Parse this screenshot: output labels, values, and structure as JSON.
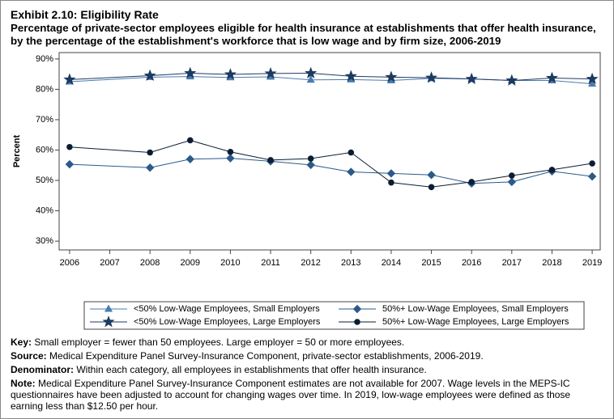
{
  "chart_data": {
    "type": "line",
    "title": "Exhibit 2.10: Eligibility Rate",
    "subtitle": "Percentage of private-sector employees eligible for health insurance at establishments that offer health insurance, by the percentage of the establishment's workforce that is low wage and by firm size, 2006-2019",
    "y_label": "Percent",
    "x": [
      2006,
      2008,
      2009,
      2010,
      2011,
      2012,
      2013,
      2014,
      2015,
      2016,
      2017,
      2018,
      2019
    ],
    "xlim": [
      2005.74,
      2019.2
    ],
    "xticks": [
      2006,
      2007,
      2008,
      2009,
      2010,
      2011,
      2012,
      2013,
      2014,
      2015,
      2016,
      2017,
      2018,
      2019
    ],
    "ylim": [
      27.1,
      92.1
    ],
    "yticks": [
      {
        "value": 30,
        "label": "30%"
      },
      {
        "value": 40,
        "label": "40%"
      },
      {
        "value": 50,
        "label": "50%"
      },
      {
        "value": 60,
        "label": "60%"
      },
      {
        "value": 70,
        "label": "70%"
      },
      {
        "value": 80,
        "label": "80%"
      },
      {
        "value": 90,
        "label": "90%"
      }
    ],
    "series": [
      {
        "name": "<50% Low-Wage Employees, Small Employers",
        "color": "#4a7cb0",
        "marker": "triangle",
        "values": [
          82.5,
          84.0,
          84.2,
          83.9,
          84.1,
          83.1,
          83.2,
          82.9,
          83.6,
          83.4,
          82.9,
          82.9,
          81.8
        ]
      },
      {
        "name": "50%+ Low-Wage Employees, Small Employers",
        "color": "#2b5a8a",
        "marker": "diamond",
        "values": [
          55.3,
          54.2,
          57.0,
          57.3,
          56.3,
          55.1,
          52.8,
          52.3,
          51.8,
          49.0,
          49.5,
          53.0,
          51.3
        ]
      },
      {
        "name": "<50% Low-Wage Employees, Large Employers",
        "color": "#1d3a60",
        "marker": "star",
        "values": [
          83.2,
          84.5,
          85.3,
          84.9,
          85.2,
          85.3,
          84.3,
          84.0,
          83.8,
          83.4,
          82.9,
          83.7,
          83.4
        ]
      },
      {
        "name": "50%+ Low-Wage Employees, Large Employers",
        "color": "#0c1d33",
        "marker": "circle",
        "values": [
          61.0,
          59.2,
          63.2,
          59.4,
          56.7,
          57.2,
          59.2,
          49.3,
          47.8,
          49.5,
          51.6,
          53.5,
          55.6
        ]
      }
    ],
    "notes": [
      {
        "label": "Key:",
        "text": "Small employer = fewer than 50 employees. Large employer = 50 or more employees."
      },
      {
        "label": "Source:",
        "text": "Medical Expenditure Panel Survey-Insurance Component, private-sector establishments, 2006-2019."
      },
      {
        "label": "Denominator:",
        "text": "Within each category, all employees in establishments that offer health insurance."
      },
      {
        "label": "Note:",
        "text": "Medical Expenditure Panel Survey-Insurance Component estimates are not available for 2007. Wage levels in the MEPS-IC questionnaires have been adjusted to account for changing wages over time. In 2019, low-wage employees were defined as those earning less than $12.50 per hour."
      }
    ]
  }
}
